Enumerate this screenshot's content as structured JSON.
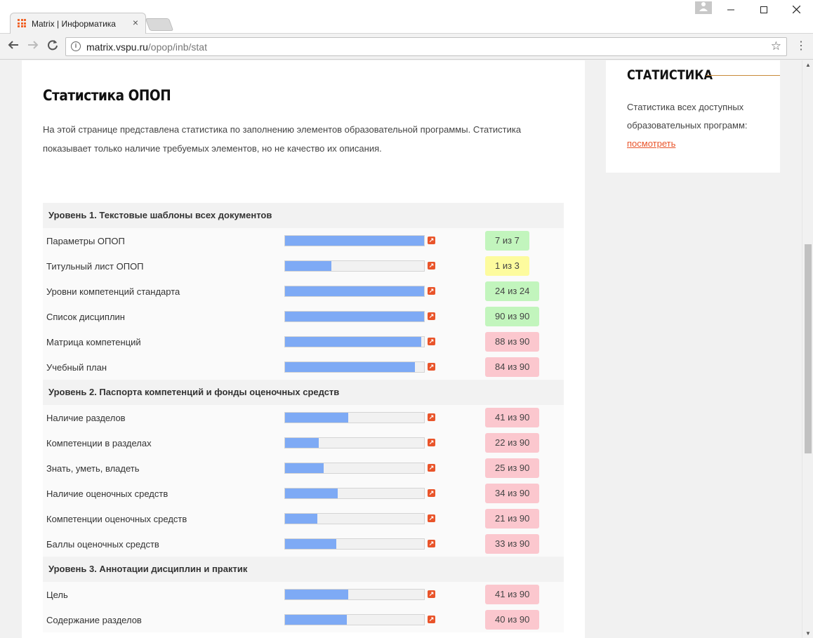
{
  "browser": {
    "tab_title": "Matrix | Информатика",
    "tab_close": "×",
    "url_host": "matrix.vspu.ru",
    "url_path": "/opop/inb/stat",
    "info_glyph": "i",
    "icons": [
      "apps-grid-icon",
      "back-arrow-icon",
      "forward-arrow-icon",
      "reload-icon",
      "info-icon",
      "bookmark-star-icon",
      "menu-dots-icon",
      "user-icon",
      "minimize-icon",
      "maximize-icon",
      "close-icon"
    ]
  },
  "main": {
    "title": "Статистика ОПОП",
    "description": "На этой странице представлена статистика по заполнению элементов образовательной программы. Статистика показывает только наличие требуемых элементов, но не качество их описания."
  },
  "colors": {
    "complete": "#c2f5bd",
    "partial": "#fdfb9e",
    "incomplete": "#fbc7ce",
    "bar": "#7eaaf5",
    "accent": "#e9542a"
  },
  "levels": [
    {
      "title": "Уровень 1. Текстовые шаблоны всех документов",
      "items": [
        {
          "label": "Параметры ОПОП",
          "status": "7 из 7",
          "progress": 1.0,
          "state": "complete"
        },
        {
          "label": "Титульный лист ОПОП",
          "status": "1 из 3",
          "progress": 0.333,
          "state": "partial"
        },
        {
          "label": "Уровни компетенций стандарта",
          "status": "24 из 24",
          "progress": 1.0,
          "state": "complete"
        },
        {
          "label": "Список дисциплин",
          "status": "90 из 90",
          "progress": 1.0,
          "state": "complete"
        },
        {
          "label": "Матрица компетенций",
          "status": "88 из 90",
          "progress": 0.978,
          "state": "incomplete"
        },
        {
          "label": "Учебный план",
          "status": "84 из 90",
          "progress": 0.933,
          "state": "incomplete"
        }
      ]
    },
    {
      "title": "Уровень 2. Паспорта компетенций и фонды оценочных средств",
      "items": [
        {
          "label": "Наличие разделов",
          "status": "41 из 90",
          "progress": 0.456,
          "state": "incomplete"
        },
        {
          "label": "Компетенции в разделах",
          "status": "22 из 90",
          "progress": 0.244,
          "state": "incomplete"
        },
        {
          "label": "Знать, уметь, владеть",
          "status": "25 из 90",
          "progress": 0.278,
          "state": "incomplete"
        },
        {
          "label": "Наличие оценочных средств",
          "status": "34 из 90",
          "progress": 0.378,
          "state": "incomplete"
        },
        {
          "label": "Компетенции оценочных средств",
          "status": "21 из 90",
          "progress": 0.233,
          "state": "incomplete"
        },
        {
          "label": "Баллы оценочных средств",
          "status": "33 из 90",
          "progress": 0.367,
          "state": "incomplete"
        }
      ]
    },
    {
      "title": "Уровень 3. Аннотации дисциплин и практик",
      "items": [
        {
          "label": "Цель",
          "status": "41 из 90",
          "progress": 0.456,
          "state": "incomplete"
        },
        {
          "label": "Содержание разделов",
          "status": "40 из 90",
          "progress": 0.444,
          "state": "incomplete"
        }
      ]
    }
  ],
  "sidebar": {
    "title": "СТАТИСТИКА",
    "text": "Статистика всех доступных образовательных программ:",
    "link": "посмотреть"
  }
}
